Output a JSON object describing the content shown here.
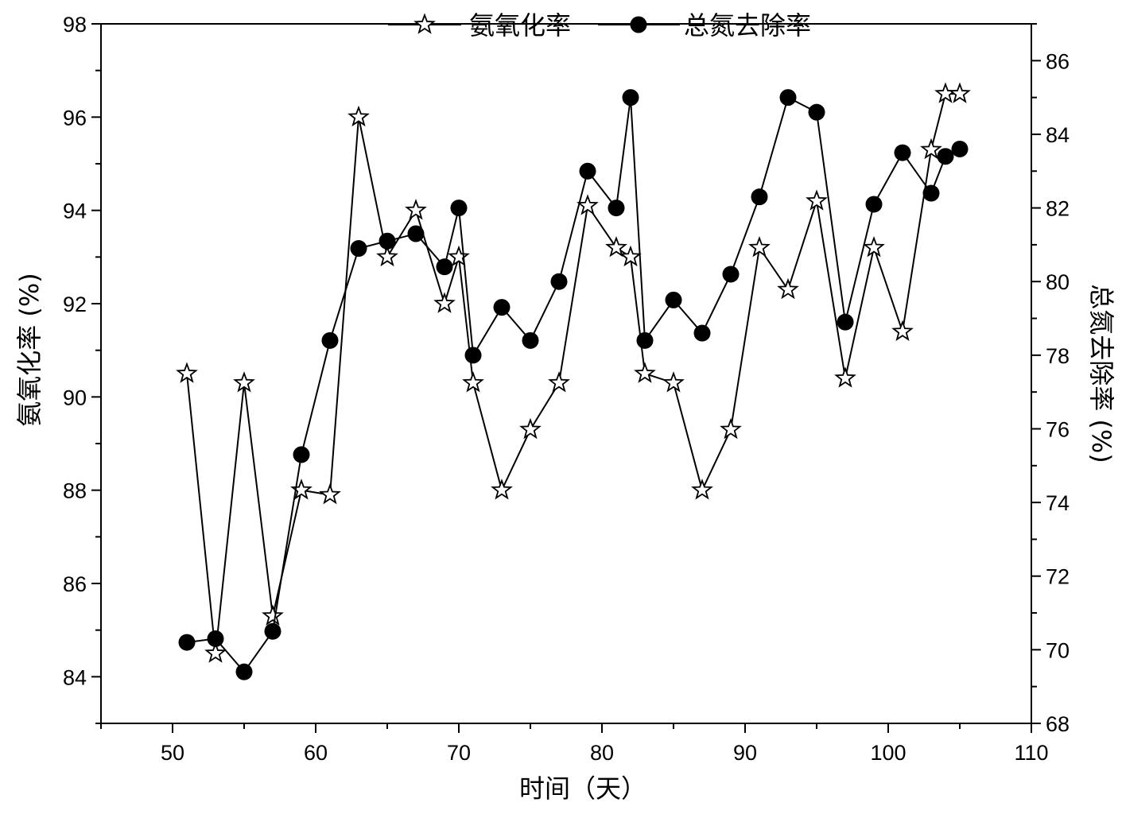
{
  "chart_data": {
    "type": "line",
    "title": "",
    "xlabel": "时间（天）",
    "ylabel_left": "氨氧化率 (%)",
    "ylabel_right": "总氮去除率 (%)",
    "xlim": [
      45,
      110
    ],
    "ylim_left": [
      83,
      98
    ],
    "ylim_right": [
      68,
      87
    ],
    "x_ticks": [
      50,
      60,
      70,
      80,
      90,
      100,
      110
    ],
    "y_left_ticks": [
      84,
      86,
      88,
      90,
      92,
      94,
      96,
      98
    ],
    "y_right_ticks": [
      68,
      70,
      72,
      74,
      76,
      78,
      80,
      82,
      84,
      86
    ],
    "grid": false,
    "legend_position": "top-center",
    "series": [
      {
        "name": "氨氧化率",
        "axis": "left",
        "marker": "star",
        "color": "#000000",
        "x": [
          51,
          53,
          55,
          57,
          59,
          61,
          63,
          65,
          67,
          69,
          70,
          71,
          73,
          75,
          77,
          79,
          81,
          82,
          83,
          85,
          87,
          89,
          91,
          93,
          95,
          97,
          99,
          101,
          103,
          104,
          105
        ],
        "values": [
          90.5,
          84.5,
          90.3,
          85.3,
          88.0,
          87.9,
          96.0,
          93.0,
          94.0,
          92.0,
          93.0,
          90.3,
          88.0,
          89.3,
          90.3,
          94.1,
          93.2,
          93.0,
          90.5,
          90.3,
          88.0,
          89.3,
          93.2,
          92.3,
          94.2,
          90.4,
          93.2,
          91.4,
          95.3,
          96.5,
          96.5
        ]
      },
      {
        "name": "总氮去除率",
        "axis": "right",
        "marker": "circle",
        "color": "#000000",
        "x": [
          51,
          53,
          55,
          57,
          59,
          61,
          63,
          65,
          67,
          69,
          70,
          71,
          73,
          75,
          77,
          79,
          81,
          82,
          83,
          85,
          87,
          89,
          91,
          93,
          95,
          97,
          99,
          101,
          103,
          104,
          105
        ],
        "values": [
          70.2,
          70.3,
          69.4,
          70.5,
          75.3,
          78.4,
          80.9,
          81.1,
          81.3,
          80.4,
          82.0,
          78.0,
          79.3,
          78.4,
          80.0,
          83.0,
          82.0,
          85.0,
          78.4,
          79.5,
          78.6,
          80.2,
          82.3,
          85.0,
          84.6,
          78.9,
          82.1,
          83.5,
          82.4,
          83.4,
          83.6
        ]
      }
    ]
  }
}
